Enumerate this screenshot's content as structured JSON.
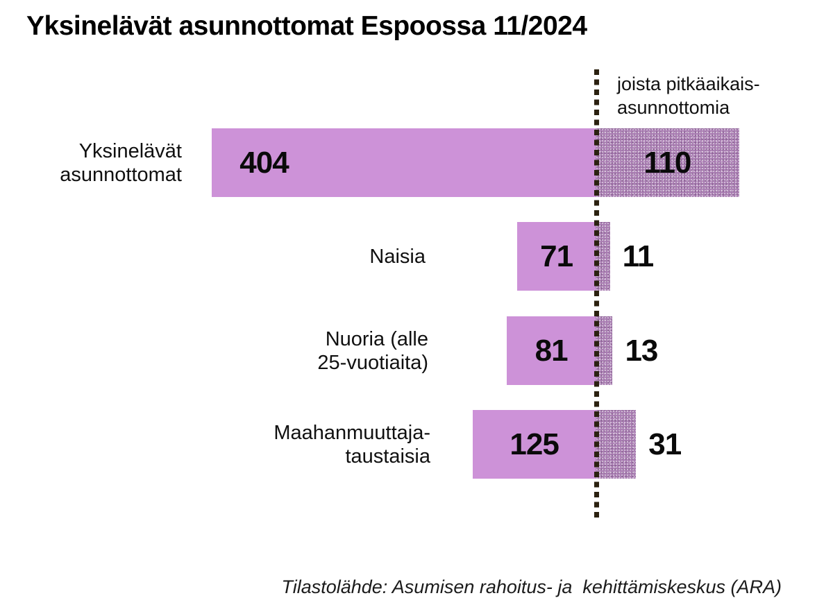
{
  "title": "Yksinelävät asunnottomat Espoossa 11/2024",
  "annotation": {
    "line1": "joista pitkäaikais-",
    "line2": "asunnottomia"
  },
  "source_note": "Tilastolähde: Asumisen rahoitus- ja  kehittämiskeskus (ARA)",
  "colors": {
    "bar": "#cd92d8",
    "longterm_bar": "#a87cb1",
    "dashed_line": "#2b2110",
    "text": "#000000",
    "background": "#ffffff"
  },
  "bars": [
    {
      "label_lines": [
        "Yksinelävät",
        "asunnottomat"
      ],
      "total": 404,
      "longterm": 110,
      "total_label": "404",
      "longterm_label": "110"
    },
    {
      "label_lines": [
        "Naisia"
      ],
      "total": 71,
      "longterm": 11,
      "total_label": "71",
      "longterm_label": "11"
    },
    {
      "label_lines": [
        "Nuoria (alle",
        "25-vuotiaita)"
      ],
      "total": 81,
      "longterm": 13,
      "total_label": "81",
      "longterm_label": "13"
    },
    {
      "label_lines": [
        "Maahanmuuttaja-",
        "taustaisia"
      ],
      "total": 125,
      "longterm": 31,
      "total_label": "125",
      "longterm_label": "31"
    }
  ],
  "chart_data": {
    "type": "bar",
    "orientation": "horizontal",
    "title": "Yksinelävät asunnottomat Espoossa 11/2024",
    "categories": [
      "Yksinelävät asunnottomat",
      "Naisia",
      "Nuoria (alle 25-vuotiaita)",
      "Maahanmuuttaja-taustaisia"
    ],
    "series": [
      {
        "name": "Yksinelävät asunnottomat",
        "values": [
          404,
          71,
          81,
          125
        ]
      },
      {
        "name": "joista pitkäaikaisasunnottomia",
        "values": [
          110,
          11,
          13,
          31
        ]
      }
    ],
    "annotation": "joista pitkäaikais-asunnottomia",
    "source": "Tilastolähde: Asumisen rahoitus- ja kehittämiskeskus (ARA)",
    "xlabel": "",
    "ylabel": "",
    "grid": false,
    "legend_position": "none",
    "value_labels": true
  }
}
